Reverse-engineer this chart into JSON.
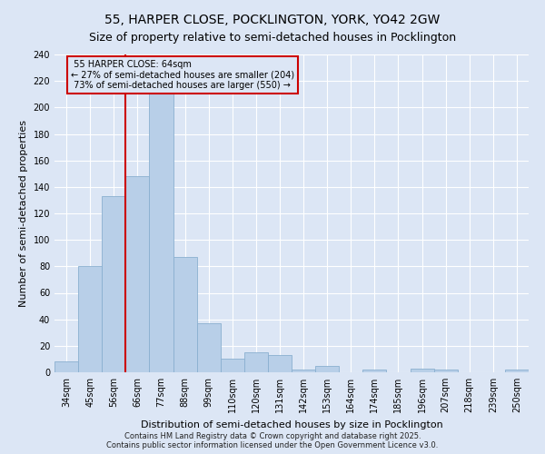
{
  "title": "55, HARPER CLOSE, POCKLINGTON, YORK, YO42 2GW",
  "subtitle": "Size of property relative to semi-detached houses in Pocklington",
  "xlabel": "Distribution of semi-detached houses by size in Pocklington",
  "ylabel": "Number of semi-detached properties",
  "categories": [
    "34sqm",
    "45sqm",
    "56sqm",
    "66sqm",
    "77sqm",
    "88sqm",
    "99sqm",
    "110sqm",
    "120sqm",
    "131sqm",
    "142sqm",
    "153sqm",
    "164sqm",
    "174sqm",
    "185sqm",
    "196sqm",
    "207sqm",
    "218sqm",
    "239sqm",
    "250sqm"
  ],
  "values": [
    8,
    80,
    133,
    148,
    225,
    87,
    37,
    10,
    15,
    13,
    2,
    5,
    0,
    2,
    0,
    3,
    2,
    0,
    0,
    2
  ],
  "bar_color": "#b8cfe8",
  "bar_edge_color": "#8ab0d0",
  "vline_index": 2.5,
  "subject_label": "55 HARPER CLOSE: 64sqm",
  "pct_smaller": 27,
  "count_smaller": 204,
  "pct_larger": 73,
  "count_larger": 550,
  "annotation_box_color": "#cc0000",
  "vline_color": "#cc0000",
  "background_color": "#dce6f5",
  "grid_color": "#ffffff",
  "ylim": [
    0,
    240
  ],
  "yticks": [
    0,
    20,
    40,
    60,
    80,
    100,
    120,
    140,
    160,
    180,
    200,
    220,
    240
  ],
  "footer": "Contains HM Land Registry data © Crown copyright and database right 2025.\nContains public sector information licensed under the Open Government Licence v3.0.",
  "title_fontsize": 10,
  "subtitle_fontsize": 9,
  "xlabel_fontsize": 8,
  "ylabel_fontsize": 8,
  "tick_fontsize": 7,
  "footer_fontsize": 6
}
